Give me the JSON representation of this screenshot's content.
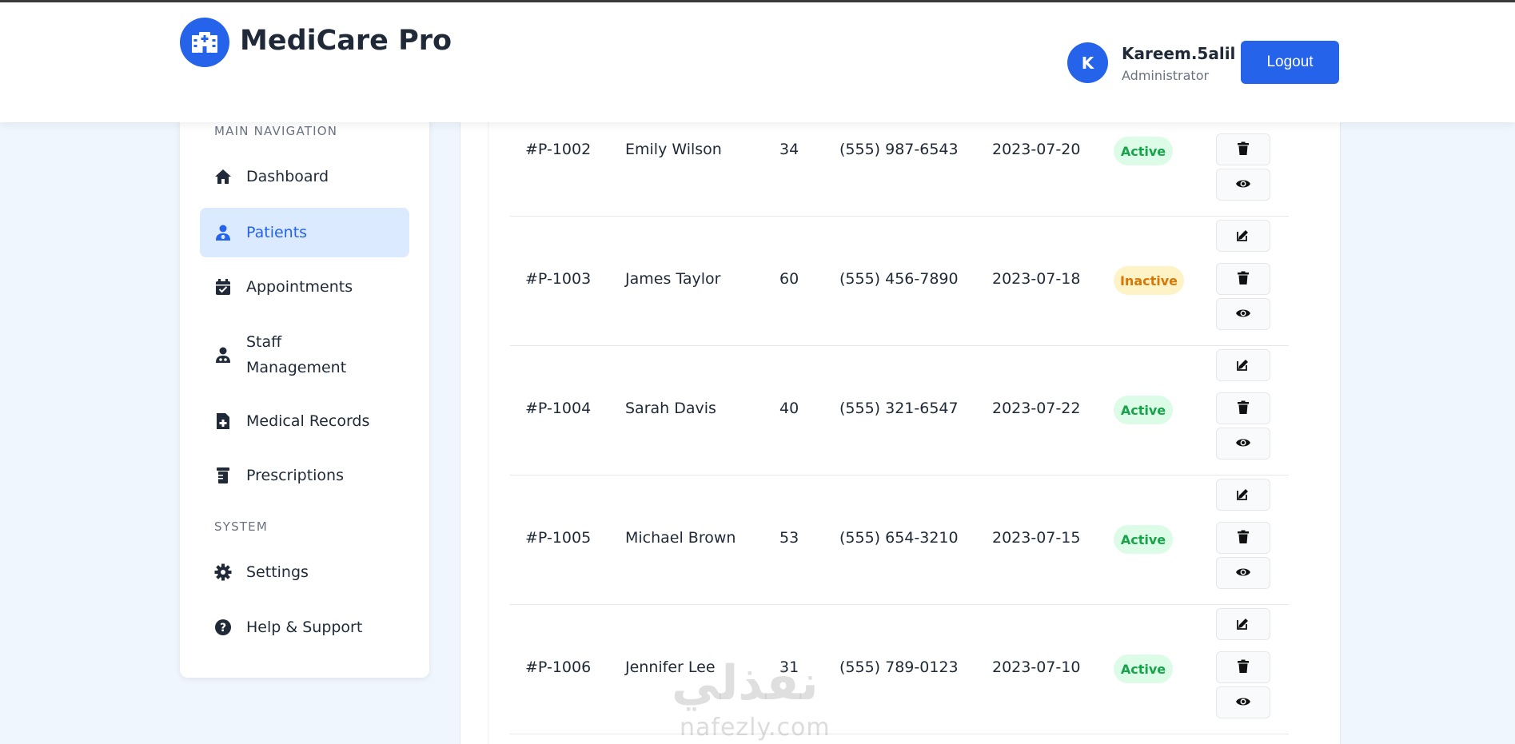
{
  "header": {
    "brand": "MediCare Pro",
    "user": {
      "initial": "K",
      "name": "Kareem.5alil",
      "role": "Administrator"
    },
    "logout_label": "Logout"
  },
  "sidebar": {
    "main_label": "MAIN NAVIGATION",
    "items": [
      {
        "label": "Dashboard",
        "icon": "home-icon"
      },
      {
        "label": "Patients",
        "icon": "patient-icon",
        "active": true
      },
      {
        "label": "Appointments",
        "icon": "calendar-check-icon"
      },
      {
        "label": "Staff",
        "label2": "Management",
        "icon": "user-doctor-icon"
      },
      {
        "label": "Medical Records",
        "icon": "file-medical-icon"
      },
      {
        "label": "Prescriptions",
        "icon": "prescription-bottle-icon"
      }
    ],
    "system_label": "SYSTEM",
    "system_items": [
      {
        "label": "Settings",
        "icon": "gear-icon"
      },
      {
        "label": "Help & Support",
        "icon": "question-circle-icon"
      }
    ]
  },
  "patients": [
    {
      "id": "#P-1002",
      "name": "Emily Wilson",
      "age": "34",
      "phone": "(555) 987-6543",
      "date": "2023-07-20",
      "status": "Active"
    },
    {
      "id": "#P-1003",
      "name": "James Taylor",
      "age": "60",
      "phone": "(555) 456-7890",
      "date": "2023-07-18",
      "status": "Inactive"
    },
    {
      "id": "#P-1004",
      "name": "Sarah Davis",
      "age": "40",
      "phone": "(555) 321-6547",
      "date": "2023-07-22",
      "status": "Active"
    },
    {
      "id": "#P-1005",
      "name": "Michael Brown",
      "age": "53",
      "phone": "(555) 654-3210",
      "date": "2023-07-15",
      "status": "Active"
    },
    {
      "id": "#P-1006",
      "name": "Jennifer Lee",
      "age": "31",
      "phone": "(555) 789-0123",
      "date": "2023-07-10",
      "status": "Active"
    }
  ],
  "actions": {
    "edit_icon": "edit-icon",
    "delete_icon": "trash-icon",
    "view_icon": "eye-icon"
  },
  "watermark": {
    "arabic": "نفذلي",
    "latin": "nafezly.com"
  },
  "colors": {
    "primary": "#2563eb",
    "active_bg": "#dcfce7",
    "active_text": "#16a34a",
    "inactive_bg": "#fef3c7",
    "inactive_text": "#d97706"
  }
}
